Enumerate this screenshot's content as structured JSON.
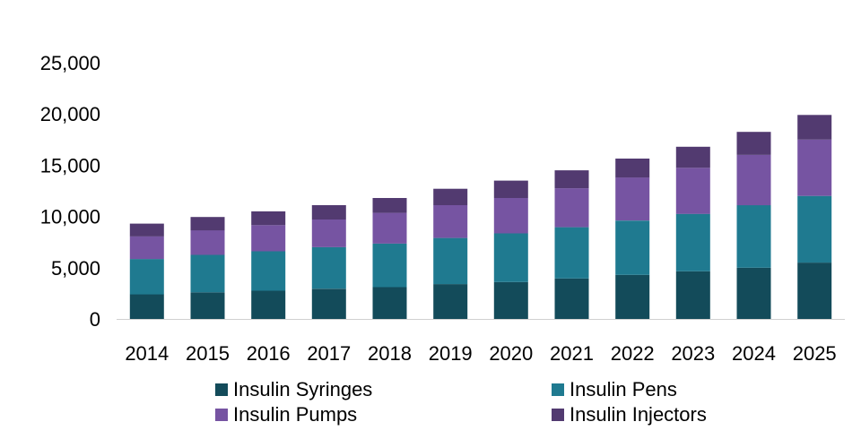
{
  "chart_data": {
    "type": "bar",
    "stacked": true,
    "categories": [
      "2014",
      "2015",
      "2016",
      "2017",
      "2018",
      "2019",
      "2020",
      "2021",
      "2022",
      "2023",
      "2024",
      "2025"
    ],
    "series": [
      {
        "name": "Insulin Syringes",
        "color": "#134b5a",
        "values": [
          2400,
          2600,
          2750,
          2950,
          3100,
          3400,
          3600,
          3950,
          4300,
          4650,
          5000,
          5500
        ]
      },
      {
        "name": "Insulin Pens",
        "color": "#1f7a90",
        "values": [
          3450,
          3650,
          3850,
          4050,
          4250,
          4500,
          4750,
          5000,
          5300,
          5600,
          6100,
          6500
        ]
      },
      {
        "name": "Insulin Pumps",
        "color": "#7654a2",
        "values": [
          2200,
          2400,
          2550,
          2700,
          3000,
          3200,
          3450,
          3800,
          4200,
          4500,
          4900,
          5500
        ]
      },
      {
        "name": "Insulin Injectors",
        "color": "#523a70",
        "values": [
          1250,
          1300,
          1350,
          1400,
          1450,
          1600,
          1700,
          1750,
          1850,
          2050,
          2250,
          2400
        ]
      }
    ],
    "title": "",
    "xlabel": "",
    "ylabel": "",
    "ylim": [
      0,
      25000
    ],
    "yticks": [
      0,
      5000,
      10000,
      15000,
      20000,
      25000
    ],
    "ytick_labels": [
      "0",
      "5,000",
      "10,000",
      "15,000",
      "20,000",
      "25,000"
    ],
    "grid": false,
    "legend_position": "bottom"
  }
}
